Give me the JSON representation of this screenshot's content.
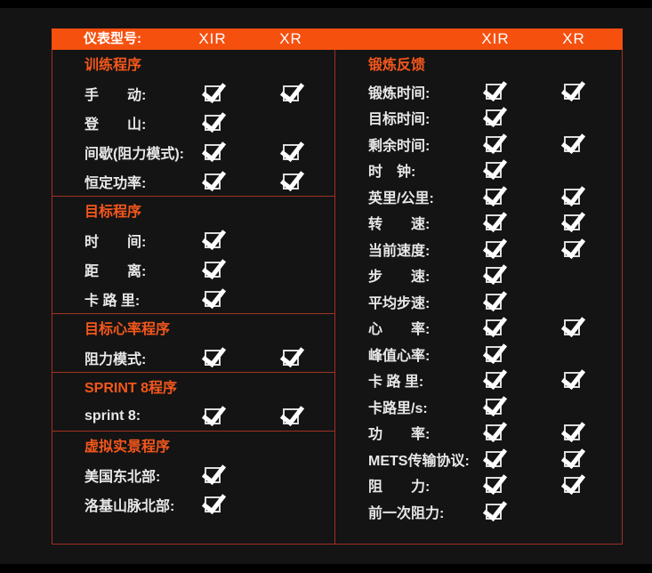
{
  "header": {
    "model_label": "仪表型号:",
    "left_columns": [
      "XIR",
      "XR"
    ],
    "right_columns": [
      "XIR",
      "XR"
    ]
  },
  "left_panel": {
    "sections": [
      {
        "title": "训练程序",
        "rows": [
          {
            "label": "手　　动:",
            "xir": true,
            "xr": true
          },
          {
            "label": "登　　山:",
            "xir": true,
            "xr": false
          },
          {
            "label": "间歇(阻力模式):",
            "xir": true,
            "xr": true
          },
          {
            "label": "恒定功率:",
            "xir": true,
            "xr": true
          }
        ]
      },
      {
        "title": "目标程序",
        "rows": [
          {
            "label": "时　　间:",
            "xir": true,
            "xr": false
          },
          {
            "label": "距　　离:",
            "xir": true,
            "xr": false
          },
          {
            "label": "卡 路 里:",
            "xir": true,
            "xr": false
          }
        ]
      },
      {
        "title": "目标心率程序",
        "rows": [
          {
            "label": "阻力模式:",
            "xir": true,
            "xr": true
          }
        ]
      },
      {
        "title": "SPRINT 8程序",
        "rows": [
          {
            "label": "sprint 8:",
            "xir": true,
            "xr": true
          }
        ]
      },
      {
        "title": "虚拟实景程序",
        "rows": [
          {
            "label": "美国东北部:",
            "xir": true,
            "xr": false
          },
          {
            "label": "洛基山脉北部:",
            "xir": true,
            "xr": false
          }
        ]
      }
    ]
  },
  "right_panel": {
    "title": "锻炼反馈",
    "rows": [
      {
        "label": "锻炼时间:",
        "xir": true,
        "xr": true
      },
      {
        "label": "目标时间:",
        "xir": true,
        "xr": false
      },
      {
        "label": "剩余时间:",
        "xir": true,
        "xr": true
      },
      {
        "label": "时　钟:",
        "xir": true,
        "xr": false
      },
      {
        "label": "英里/公里:",
        "xir": true,
        "xr": true
      },
      {
        "label": "转　　速:",
        "xir": true,
        "xr": true
      },
      {
        "label": "当前速度:",
        "xir": true,
        "xr": true
      },
      {
        "label": "步　　速:",
        "xir": true,
        "xr": false
      },
      {
        "label": "平均步速:",
        "xir": true,
        "xr": false
      },
      {
        "label": "心　　率:",
        "xir": true,
        "xr": true
      },
      {
        "label": "峰值心率:",
        "xir": true,
        "xr": false
      },
      {
        "label": "卡 路 里:",
        "xir": true,
        "xr": true
      },
      {
        "label": "卡路里/s:",
        "xir": true,
        "xr": false
      },
      {
        "label": "功　　率:",
        "xir": true,
        "xr": true
      },
      {
        "label": "METS传输协议:",
        "xir": true,
        "xr": true
      },
      {
        "label": "阻　　力:",
        "xir": true,
        "xr": true
      },
      {
        "label": "前一次阻力:",
        "xir": true,
        "xr": false
      }
    ]
  },
  "colors": {
    "background": "#141414",
    "edge_bars": "#000000",
    "header_bar": "#f6500f",
    "section_title": "#f4571c",
    "border": "#a23023",
    "label_text": "#e8e8e8",
    "checkbox": "#ffffff"
  }
}
